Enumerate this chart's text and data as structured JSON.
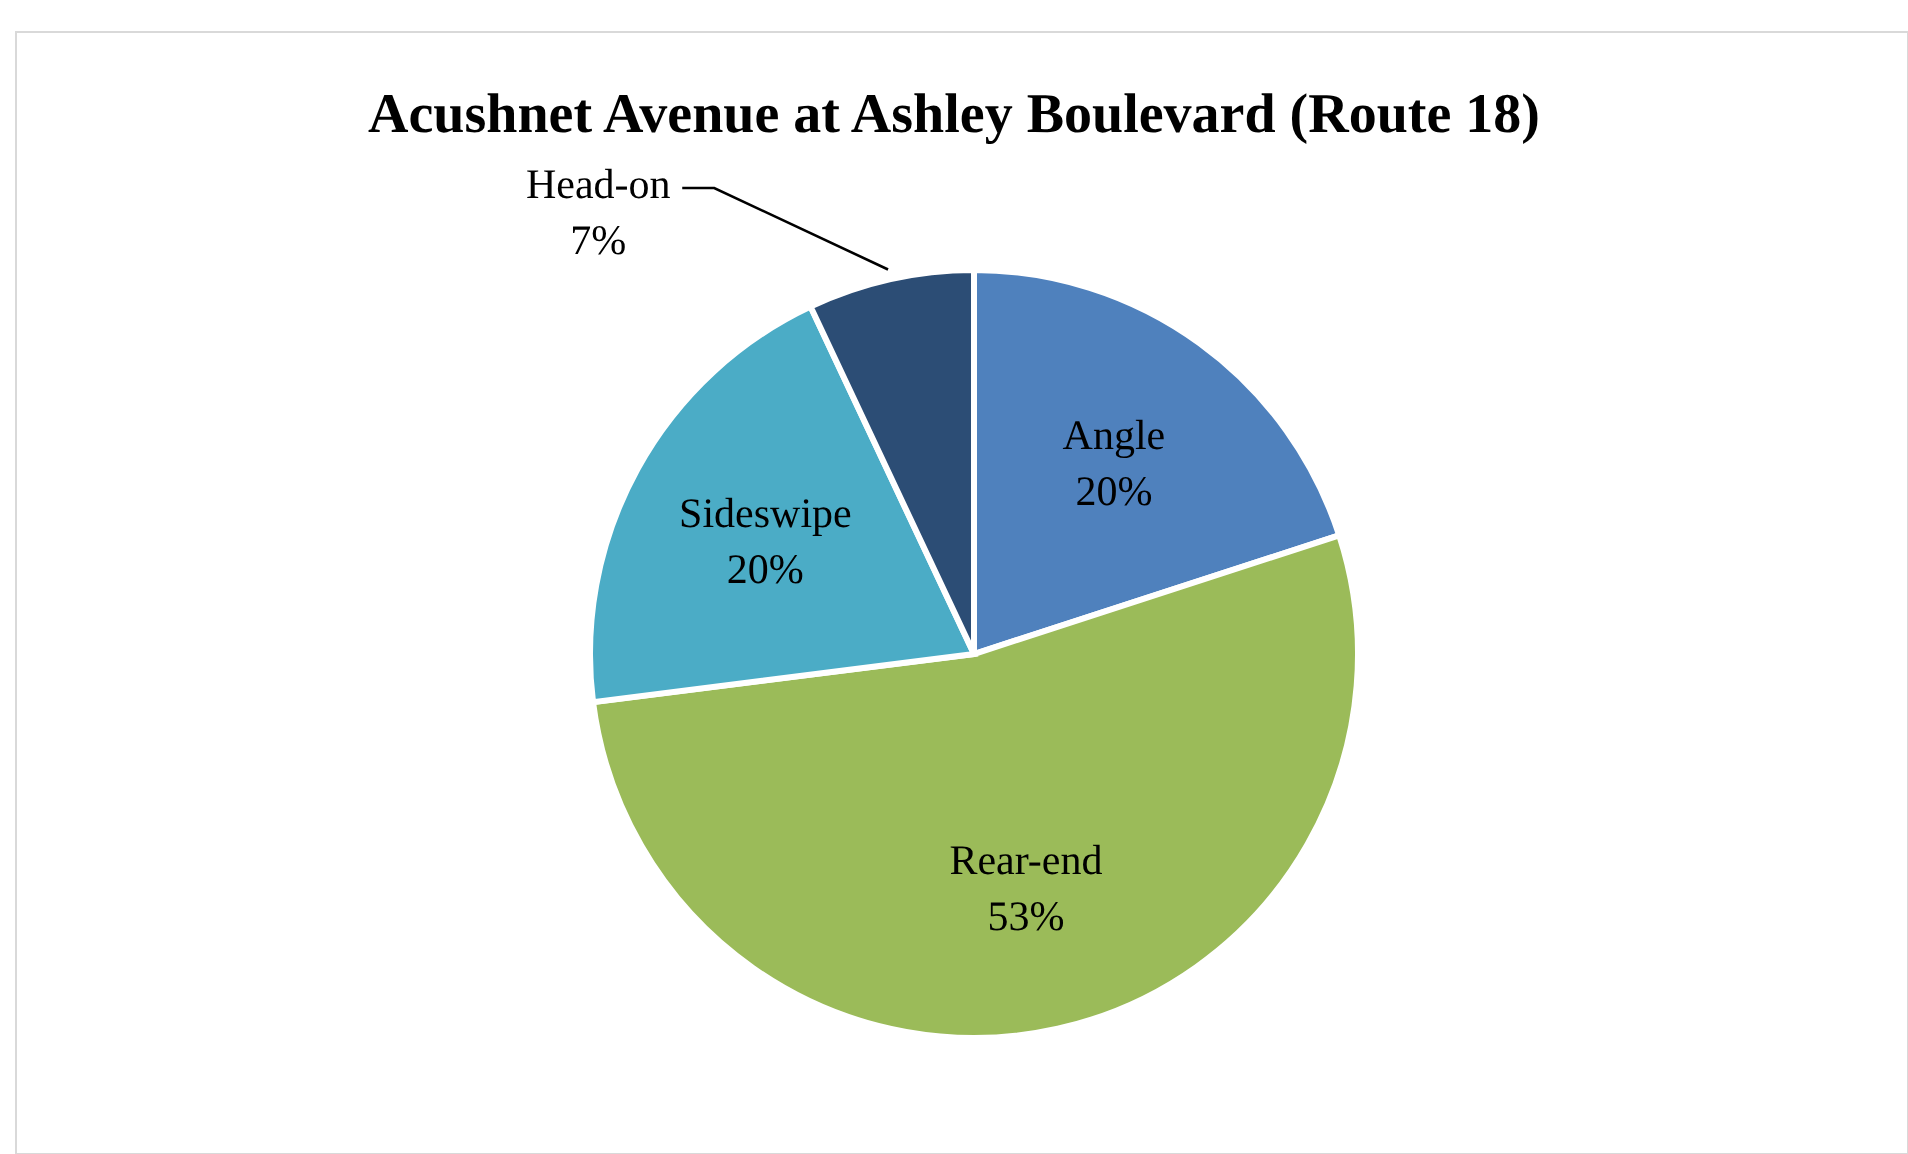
{
  "chart_data": {
    "type": "pie",
    "title": "Acushnet Avenue at Ashley Boulevard (Route 18)",
    "categories": [
      "Angle",
      "Rear-end",
      "Sideswipe",
      "Head-on"
    ],
    "values": [
      20,
      53,
      20,
      7
    ],
    "value_labels": [
      "20%",
      "53%",
      "20%",
      "7%"
    ],
    "colors": [
      "#4f81bd",
      "#9bbb59",
      "#4bacc6",
      "#2c4d75"
    ]
  }
}
